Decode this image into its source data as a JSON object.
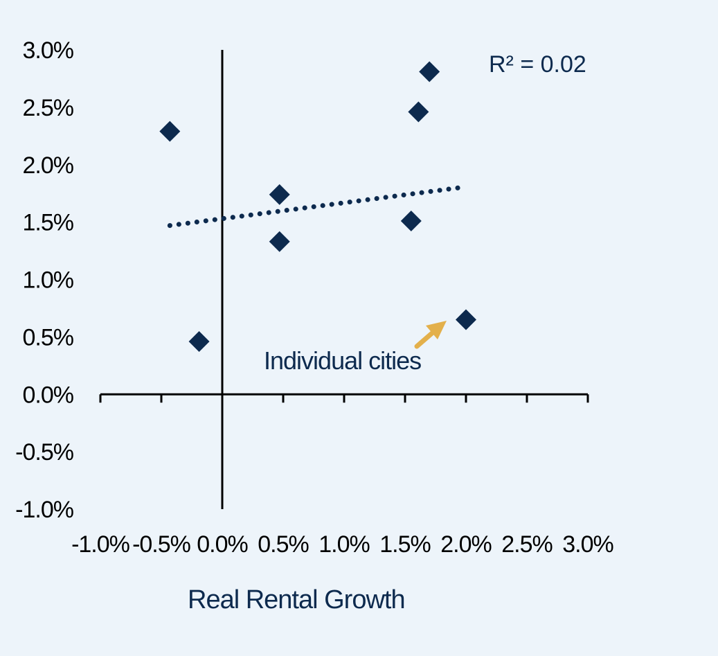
{
  "chart_data": {
    "type": "scatter",
    "title": "",
    "xlabel": "Real Rental Growth",
    "ylabel": "",
    "xlim": [
      -1.0,
      3.0
    ],
    "ylim": [
      -1.0,
      3.0
    ],
    "x_ticks": [
      "-1.0%",
      "-0.5%",
      "0.0%",
      "0.5%",
      "1.0%",
      "1.5%",
      "2.0%",
      "2.5%",
      "3.0%"
    ],
    "y_ticks": [
      "3.0%",
      "2.5%",
      "2.0%",
      "1.5%",
      "1.0%",
      "0.5%",
      "0.0%",
      "-0.5%",
      "-1.0%"
    ],
    "series": [
      {
        "points": [
          {
            "x": -0.43,
            "y": 2.29
          },
          {
            "x": -0.19,
            "y": 0.46
          },
          {
            "x": 0.47,
            "y": 1.74
          },
          {
            "x": 0.47,
            "y": 1.33
          },
          {
            "x": 1.55,
            "y": 1.51
          },
          {
            "x": 1.61,
            "y": 2.46
          },
          {
            "x": 1.7,
            "y": 2.81
          },
          {
            "x": 2.0,
            "y": 0.65
          }
        ],
        "color": "#0d2a4e",
        "marker": "diamond"
      }
    ],
    "trendline": {
      "style": "dotted",
      "color": "#0d2a4e",
      "from": {
        "x": -0.43,
        "y": 1.47
      },
      "to": {
        "x": 1.95,
        "y": 1.8
      }
    },
    "annotations": {
      "r_squared": "R² = 0.02",
      "callout": "Individual cities",
      "callout_color": "#e3b04b"
    },
    "grid": false,
    "legend": "none"
  }
}
